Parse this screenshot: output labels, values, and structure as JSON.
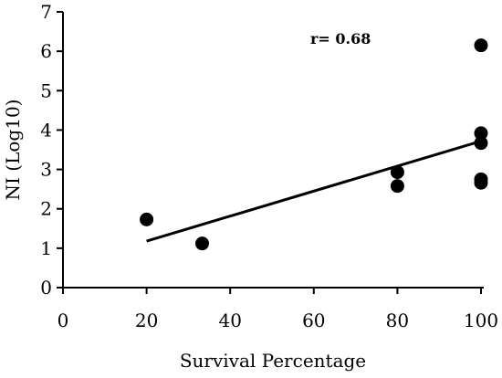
{
  "chart_data": {
    "type": "scatter",
    "title": "",
    "xlabel": "Survival Percentage",
    "ylabel": "NI (Log10)",
    "xlim": [
      0,
      100
    ],
    "ylim": [
      0,
      7
    ],
    "xticks": [
      "0",
      "20",
      "40",
      "60",
      "80",
      "100"
    ],
    "yticks": [
      "0",
      "1",
      "2",
      "3",
      "4",
      "5",
      "6",
      "7"
    ],
    "grid": false,
    "annotation": "r= 0.68",
    "series": [
      {
        "points": [
          {
            "x": 20,
            "y": 1.73
          },
          {
            "x": 33.3,
            "y": 1.12
          },
          {
            "x": 80,
            "y": 2.93
          },
          {
            "x": 80,
            "y": 2.58
          },
          {
            "x": 100,
            "y": 6.15
          },
          {
            "x": 100,
            "y": 3.92
          },
          {
            "x": 100,
            "y": 3.67
          },
          {
            "x": 100,
            "y": 2.75
          },
          {
            "x": 100,
            "y": 2.66
          }
        ]
      }
    ],
    "trendline": {
      "x": [
        20,
        100
      ],
      "y": [
        1.18,
        3.72
      ]
    },
    "colors": {
      "marker": "#000000",
      "line": "#000000",
      "axis": "#000000"
    }
  }
}
